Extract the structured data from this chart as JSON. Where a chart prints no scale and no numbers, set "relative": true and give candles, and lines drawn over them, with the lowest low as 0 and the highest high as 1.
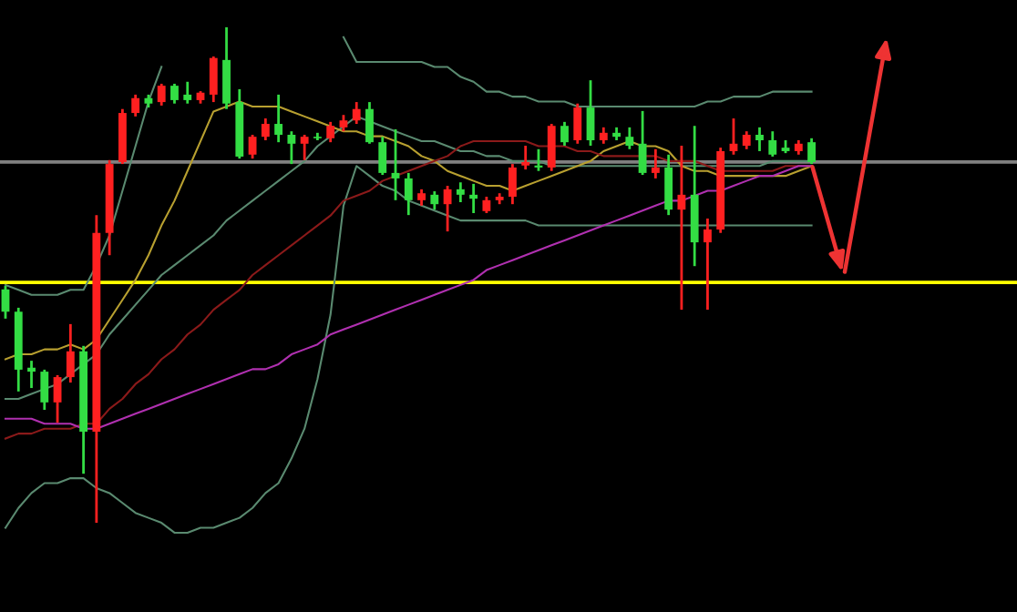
{
  "chart_data": {
    "type": "candlestick",
    "relative": true,
    "tick_labels": false,
    "categories": [
      null,
      null,
      null,
      null,
      null,
      null,
      null,
      null,
      null,
      null,
      null,
      null,
      null,
      null,
      null,
      null,
      null,
      null,
      null,
      null,
      null,
      null,
      null,
      null,
      null,
      null,
      null,
      null,
      null,
      null,
      null,
      null,
      null,
      null,
      null,
      null,
      null,
      null,
      null,
      null,
      null,
      null,
      null,
      null,
      null,
      null,
      null,
      null,
      null,
      null,
      null,
      null,
      null,
      null,
      null,
      null,
      null,
      null,
      null,
      null,
      null,
      null,
      null
    ],
    "ohlc": [
      [
        0.471,
        0.478,
        0.412,
        0.426
      ],
      [
        0.426,
        0.434,
        0.265,
        0.309
      ],
      [
        0.313,
        0.327,
        0.272,
        0.305
      ],
      [
        0.305,
        0.309,
        0.228,
        0.243
      ],
      [
        0.243,
        0.298,
        0.202,
        0.294
      ],
      [
        0.294,
        0.401,
        0.283,
        0.346
      ],
      [
        0.346,
        0.357,
        0.099,
        0.184
      ],
      [
        0.184,
        0.621,
        0.0,
        0.585
      ],
      [
        0.585,
        0.732,
        0.54,
        0.724
      ],
      [
        0.728,
        0.835,
        0.724,
        0.827
      ],
      [
        0.827,
        0.864,
        0.82,
        0.857
      ],
      [
        0.857,
        0.864,
        0.838,
        0.846
      ],
      [
        0.849,
        0.886,
        0.842,
        0.882
      ],
      [
        0.882,
        0.886,
        0.846,
        0.853
      ],
      [
        0.864,
        0.89,
        0.846,
        0.853
      ],
      [
        0.853,
        0.871,
        0.846,
        0.868
      ],
      [
        0.864,
        0.941,
        0.849,
        0.938
      ],
      [
        0.934,
        1.0,
        0.835,
        0.846
      ],
      [
        0.849,
        0.875,
        0.735,
        0.739
      ],
      [
        0.743,
        0.783,
        0.735,
        0.779
      ],
      [
        0.779,
        0.816,
        0.772,
        0.805
      ],
      [
        0.805,
        0.864,
        0.768,
        0.783
      ],
      [
        0.783,
        0.79,
        0.724,
        0.765
      ],
      [
        0.765,
        0.783,
        0.732,
        0.779
      ],
      [
        0.779,
        0.787,
        0.772,
        0.776
      ],
      [
        0.776,
        0.809,
        0.768,
        0.801
      ],
      [
        0.798,
        0.823,
        0.79,
        0.812
      ],
      [
        0.812,
        0.849,
        0.805,
        0.835
      ],
      [
        0.835,
        0.849,
        0.765,
        0.768
      ],
      [
        0.768,
        0.779,
        0.702,
        0.706
      ],
      [
        0.706,
        0.794,
        0.651,
        0.695
      ],
      [
        0.695,
        0.706,
        0.621,
        0.651
      ],
      [
        0.651,
        0.673,
        0.64,
        0.665
      ],
      [
        0.662,
        0.669,
        0.632,
        0.643
      ],
      [
        0.643,
        0.68,
        0.588,
        0.673
      ],
      [
        0.673,
        0.687,
        0.647,
        0.662
      ],
      [
        0.662,
        0.684,
        0.625,
        0.654
      ],
      [
        0.629,
        0.658,
        0.625,
        0.651
      ],
      [
        0.651,
        0.665,
        0.643,
        0.658
      ],
      [
        0.658,
        0.724,
        0.643,
        0.717
      ],
      [
        0.721,
        0.761,
        0.713,
        0.728
      ],
      [
        0.721,
        0.754,
        0.71,
        0.717
      ],
      [
        0.717,
        0.805,
        0.71,
        0.801
      ],
      [
        0.801,
        0.809,
        0.761,
        0.768
      ],
      [
        0.772,
        0.846,
        0.765,
        0.838
      ],
      [
        0.838,
        0.893,
        0.761,
        0.772
      ],
      [
        0.772,
        0.798,
        0.765,
        0.787
      ],
      [
        0.787,
        0.798,
        0.772,
        0.779
      ],
      [
        0.779,
        0.798,
        0.754,
        0.761
      ],
      [
        0.765,
        0.831,
        0.702,
        0.706
      ],
      [
        0.706,
        0.754,
        0.695,
        0.717
      ],
      [
        0.717,
        0.743,
        0.621,
        0.632
      ],
      [
        0.632,
        0.761,
        0.43,
        0.662
      ],
      [
        0.662,
        0.801,
        0.518,
        0.566
      ],
      [
        0.566,
        0.614,
        0.43,
        0.592
      ],
      [
        0.592,
        0.757,
        0.585,
        0.75
      ],
      [
        0.75,
        0.816,
        0.743,
        0.765
      ],
      [
        0.761,
        0.79,
        0.754,
        0.783
      ],
      [
        0.783,
        0.798,
        0.75,
        0.772
      ],
      [
        0.772,
        0.79,
        0.739,
        0.743
      ],
      [
        0.757,
        0.772,
        0.746,
        0.75
      ],
      [
        0.75,
        0.772,
        0.743,
        0.765
      ],
      [
        0.768,
        0.776,
        0.724,
        0.728
      ]
    ],
    "colors": [
      "#33dd44",
      "#33dd44",
      "#33dd44",
      "#33dd44",
      "#ff2020",
      "#ff2020",
      "#33dd44",
      "#ff2020",
      "#ff2020",
      "#ff2020",
      "#ff2020",
      "#33dd44",
      "#ff2020",
      "#33dd44",
      "#33dd44",
      "#ff2020",
      "#ff2020",
      "#33dd44",
      "#33dd44",
      "#ff2020",
      "#ff2020",
      "#33dd44",
      "#33dd44",
      "#ff2020",
      "#33dd44",
      "#ff2020",
      "#ff2020",
      "#ff2020",
      "#33dd44",
      "#33dd44",
      "#33dd44",
      "#33dd44",
      "#ff2020",
      "#33dd44",
      "#ff2020",
      "#33dd44",
      "#33dd44",
      "#ff2020",
      "#ff2020",
      "#ff2020",
      "#ff2020",
      "#33dd44",
      "#ff2020",
      "#33dd44",
      "#ff2020",
      "#33dd44",
      "#ff2020",
      "#33dd44",
      "#33dd44",
      "#33dd44",
      "#ff2020",
      "#33dd44",
      "#ff2020",
      "#33dd44",
      "#ff2020",
      "#ff2020",
      "#ff2020",
      "#ff2020",
      "#33dd44",
      "#33dd44",
      "#33dd44",
      "#ff2020",
      "#33dd44"
    ],
    "series": [
      {
        "type": "line",
        "color": "#5a8a70",
        "values": [
          0.48,
          0.47,
          0.46,
          0.46,
          0.46,
          0.47,
          0.47,
          0.52,
          0.58,
          0.67,
          0.76,
          0.85,
          0.92,
          null,
          null,
          null,
          null,
          null,
          null,
          null,
          null,
          null,
          null,
          null,
          null,
          null,
          0.98,
          0.93,
          0.93,
          0.93,
          0.93,
          0.93,
          0.93,
          0.92,
          0.92,
          0.9,
          0.89,
          0.87,
          0.87,
          0.86,
          0.86,
          0.85,
          0.85,
          0.85,
          0.84,
          0.84,
          0.84,
          0.84,
          0.84,
          0.84,
          0.84,
          0.84,
          0.84,
          0.84,
          0.85,
          0.85,
          0.86,
          0.86,
          0.86,
          0.87,
          0.87,
          0.87,
          0.87
        ]
      },
      {
        "type": "line",
        "color": "#5a8a70",
        "values": [
          -0.01,
          0.03,
          0.06,
          0.08,
          0.08,
          0.09,
          0.09,
          0.07,
          0.06,
          0.04,
          0.02,
          0.01,
          0.0,
          -0.02,
          -0.02,
          -0.01,
          -0.01,
          0.0,
          0.01,
          0.03,
          0.06,
          0.08,
          0.13,
          0.19,
          0.29,
          0.42,
          0.64,
          0.72,
          0.7,
          0.68,
          0.67,
          0.65,
          0.64,
          0.63,
          0.62,
          0.61,
          0.61,
          0.61,
          0.61,
          0.61,
          0.61,
          0.6,
          0.6,
          0.6,
          0.6,
          0.6,
          0.6,
          0.6,
          0.6,
          0.6,
          0.6,
          0.6,
          0.6,
          0.6,
          0.6,
          0.6,
          0.6,
          0.6,
          0.6,
          0.6,
          0.6,
          0.6,
          0.6
        ]
      },
      {
        "type": "line",
        "color": "#5a8a70",
        "values": [
          0.25,
          0.25,
          0.26,
          0.27,
          0.28,
          0.3,
          0.32,
          0.34,
          0.38,
          0.41,
          0.44,
          0.47,
          0.5,
          0.52,
          0.54,
          0.56,
          0.58,
          0.61,
          0.63,
          0.65,
          0.67,
          0.69,
          0.71,
          0.73,
          0.76,
          0.78,
          0.8,
          0.82,
          0.81,
          0.8,
          0.79,
          0.78,
          0.77,
          0.77,
          0.76,
          0.75,
          0.75,
          0.74,
          0.74,
          0.73,
          0.73,
          0.73,
          0.72,
          0.72,
          0.72,
          0.72,
          0.72,
          0.72,
          0.72,
          0.72,
          0.72,
          0.72,
          0.72,
          0.72,
          0.72,
          0.72,
          0.72,
          0.72,
          0.72,
          0.73,
          0.73,
          0.73,
          0.73
        ]
      },
      {
        "type": "line",
        "color": "#b8a030",
        "values": [
          0.33,
          0.34,
          0.34,
          0.35,
          0.35,
          0.36,
          0.35,
          0.37,
          0.41,
          0.45,
          0.49,
          0.54,
          0.6,
          0.65,
          0.71,
          0.77,
          0.83,
          0.84,
          0.85,
          0.84,
          0.84,
          0.84,
          0.83,
          0.82,
          0.81,
          0.8,
          0.79,
          0.79,
          0.78,
          0.78,
          0.77,
          0.76,
          0.74,
          0.73,
          0.71,
          0.7,
          0.69,
          0.68,
          0.68,
          0.67,
          0.68,
          0.69,
          0.7,
          0.71,
          0.72,
          0.73,
          0.75,
          0.76,
          0.77,
          0.76,
          0.76,
          0.75,
          0.72,
          0.71,
          0.71,
          0.7,
          0.7,
          0.7,
          0.7,
          0.7,
          0.7,
          0.71,
          0.72
        ]
      },
      {
        "type": "line",
        "color": "#8b1a1a",
        "values": [
          0.17,
          0.18,
          0.18,
          0.19,
          0.19,
          0.19,
          0.2,
          0.2,
          0.23,
          0.25,
          0.28,
          0.3,
          0.33,
          0.35,
          0.38,
          0.4,
          0.43,
          0.45,
          0.47,
          0.5,
          0.52,
          0.54,
          0.56,
          0.58,
          0.6,
          0.62,
          0.65,
          0.66,
          0.67,
          0.69,
          0.7,
          0.71,
          0.72,
          0.73,
          0.74,
          0.76,
          0.77,
          0.77,
          0.77,
          0.77,
          0.77,
          0.76,
          0.76,
          0.76,
          0.75,
          0.75,
          0.74,
          0.74,
          0.74,
          0.74,
          0.74,
          0.73,
          0.73,
          0.73,
          0.72,
          0.71,
          0.71,
          0.71,
          0.71,
          0.71,
          0.72,
          0.72,
          0.72
        ]
      },
      {
        "type": "line",
        "color": "#b030b0",
        "values": [
          0.21,
          0.21,
          0.21,
          0.2,
          0.2,
          0.2,
          0.19,
          0.19,
          0.2,
          0.21,
          0.22,
          0.23,
          0.24,
          0.25,
          0.26,
          0.27,
          0.28,
          0.29,
          0.3,
          0.31,
          0.31,
          0.32,
          0.34,
          0.35,
          0.36,
          0.38,
          0.39,
          0.4,
          0.41,
          0.42,
          0.43,
          0.44,
          0.45,
          0.46,
          0.47,
          0.48,
          0.49,
          0.51,
          0.52,
          0.53,
          0.54,
          0.55,
          0.56,
          0.57,
          0.58,
          0.59,
          0.6,
          0.61,
          0.62,
          0.63,
          0.64,
          0.65,
          0.65,
          0.66,
          0.67,
          0.67,
          0.68,
          0.69,
          0.7,
          0.7,
          0.71,
          0.72,
          0.72
        ]
      }
    ],
    "ref_lines": [
      {
        "axis": "y",
        "value": 0.485,
        "color": "#ffff00"
      },
      {
        "axis": "y",
        "value": 0.728,
        "color": "#808080"
      }
    ]
  }
}
